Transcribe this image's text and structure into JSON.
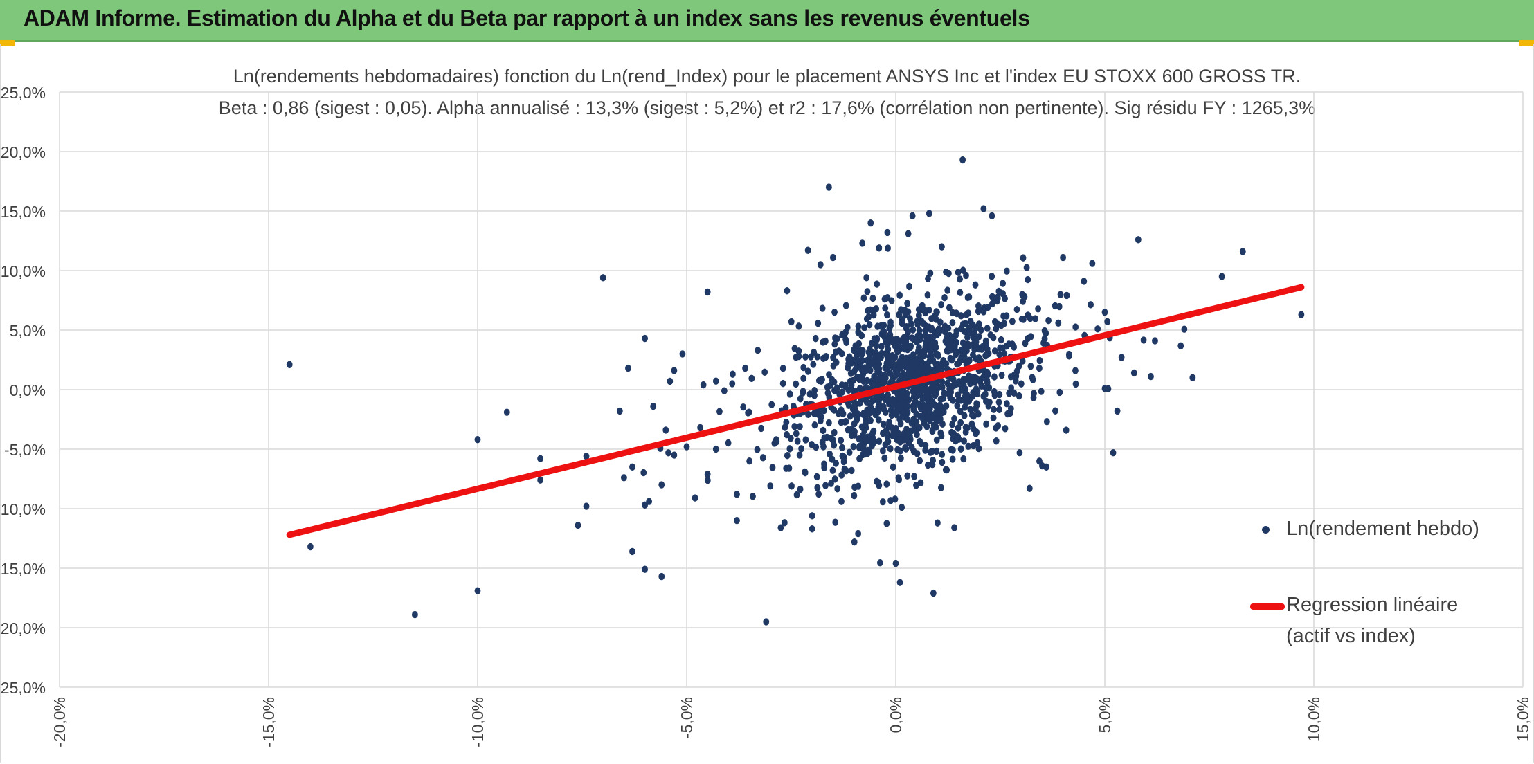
{
  "header": {
    "title": "ADAM Informe. Estimation du Alpha et du Beta par rapport à un index sans les revenus éventuels"
  },
  "colors": {
    "banner": "#7fc77a",
    "points": "#1f3864",
    "regression": "#ee1111",
    "grid": "#d9d9d9"
  },
  "chart_data": {
    "type": "scatter",
    "title": "Ln(rendements hebdomadaires) fonction du Ln(rend_Index) pour le placement ANSYS Inc et l'index EU STOXX 600 GROSS TR.",
    "subtitle": "Beta : 0,86 (sigest : 0,05). Alpha annualisé : 13,3% (sigest : 5,2%) et r2 : 17,6% (corrélation non pertinente). Sig résidu FY : 1265,3%",
    "xlabel": "",
    "ylabel": "",
    "xlim": [
      -20,
      15
    ],
    "ylim": [
      -25,
      25
    ],
    "x_ticks": [
      "-20,0%",
      "-15,0%",
      "-10,0%",
      "-5,0%",
      "0,0%",
      "5,0%",
      "10,0%",
      "15,0%"
    ],
    "y_ticks": [
      "25,0%",
      "20,0%",
      "15,0%",
      "10,0%",
      "5,0%",
      "0,0%",
      "-5,0%",
      "-10,0%",
      "-15,0%",
      "-20,0%",
      "-25,0%"
    ],
    "grid": true,
    "legend_position": "right",
    "series": [
      {
        "name": "Ln(rendement hebdo)",
        "marker": "point",
        "points": [
          [
            -14.5,
            2.1
          ],
          [
            -14.0,
            -13.2
          ],
          [
            -11.5,
            -18.9
          ],
          [
            -10.0,
            -16.9
          ],
          [
            -10.0,
            -4.2
          ],
          [
            -9.3,
            -1.9
          ],
          [
            -8.5,
            -5.8
          ],
          [
            -8.5,
            -7.6
          ],
          [
            -7.6,
            -11.4
          ],
          [
            -7.4,
            -9.8
          ],
          [
            -7.4,
            -5.6
          ],
          [
            -7.0,
            9.4
          ],
          [
            -6.6,
            -1.8
          ],
          [
            -6.5,
            -7.4
          ],
          [
            -6.4,
            1.8
          ],
          [
            -6.3,
            -13.6
          ],
          [
            -6.3,
            -6.5
          ],
          [
            -6.0,
            4.3
          ],
          [
            -6.0,
            -15.1
          ],
          [
            -6.0,
            -9.7
          ],
          [
            -5.9,
            -9.4
          ],
          [
            -5.8,
            -1.4
          ],
          [
            -5.6,
            -15.7
          ],
          [
            -5.6,
            -8.0
          ],
          [
            -5.5,
            -3.4
          ],
          [
            -5.4,
            0.7
          ],
          [
            -5.3,
            1.6
          ],
          [
            -5.1,
            3.0
          ],
          [
            -5.3,
            -5.5
          ],
          [
            -5.0,
            -4.8
          ],
          [
            -4.8,
            -9.1
          ],
          [
            -4.6,
            0.4
          ],
          [
            -4.5,
            8.2
          ],
          [
            -4.5,
            -7.1
          ],
          [
            -4.3,
            -5.0
          ],
          [
            -4.1,
            -0.1
          ],
          [
            -3.9,
            1.3
          ],
          [
            -3.8,
            -11.0
          ],
          [
            -3.8,
            -8.8
          ],
          [
            -3.6,
            1.8
          ],
          [
            -3.5,
            -6.0
          ],
          [
            -3.3,
            3.3
          ],
          [
            -3.1,
            -19.5
          ],
          [
            -3.0,
            -8.1
          ],
          [
            -2.9,
            -4.5
          ],
          [
            -2.6,
            8.3
          ],
          [
            -2.3,
            -5.5
          ],
          [
            -2.1,
            11.7
          ],
          [
            -2.0,
            -11.7
          ],
          [
            -2.0,
            -10.6
          ],
          [
            -1.8,
            10.5
          ],
          [
            -1.6,
            17.0
          ],
          [
            -1.5,
            11.1
          ],
          [
            -1.3,
            -9.4
          ],
          [
            -1.2,
            4.8
          ],
          [
            -0.9,
            -12.1
          ],
          [
            -0.8,
            12.3
          ],
          [
            -0.7,
            9.4
          ],
          [
            -0.6,
            14.0
          ],
          [
            -0.4,
            11.9
          ],
          [
            -0.2,
            13.2
          ],
          [
            0.0,
            -14.6
          ],
          [
            0.1,
            -16.2
          ],
          [
            0.3,
            13.1
          ],
          [
            0.4,
            14.6
          ],
          [
            0.8,
            14.8
          ],
          [
            0.9,
            -17.1
          ],
          [
            1.0,
            -11.2
          ],
          [
            1.1,
            12.0
          ],
          [
            1.4,
            -11.6
          ],
          [
            1.6,
            19.3
          ],
          [
            2.1,
            15.2
          ],
          [
            2.3,
            14.6
          ],
          [
            3.2,
            -8.3
          ],
          [
            3.5,
            -6.4
          ],
          [
            3.6,
            -6.5
          ],
          [
            4.0,
            11.1
          ],
          [
            4.5,
            9.1
          ],
          [
            4.7,
            10.6
          ],
          [
            5.0,
            6.5
          ],
          [
            5.0,
            0.1
          ],
          [
            5.2,
            -5.3
          ],
          [
            5.3,
            -1.8
          ],
          [
            5.4,
            2.7
          ],
          [
            5.7,
            1.4
          ],
          [
            5.8,
            12.6
          ],
          [
            6.1,
            1.1
          ],
          [
            6.2,
            4.1
          ],
          [
            7.1,
            1.0
          ],
          [
            7.8,
            9.5
          ],
          [
            8.3,
            11.6
          ],
          [
            9.7,
            6.3
          ]
        ]
      },
      {
        "name": "Regression linéaire (actif vs index)",
        "marker": "line",
        "x": [
          -14.5,
          9.7
        ],
        "y": [
          -12.2,
          8.6
        ]
      }
    ]
  },
  "legend": {
    "points_label": "Ln(rendement hebdo)",
    "line_label_1": "Regression linéaire",
    "line_label_2": "(actif vs index)"
  }
}
